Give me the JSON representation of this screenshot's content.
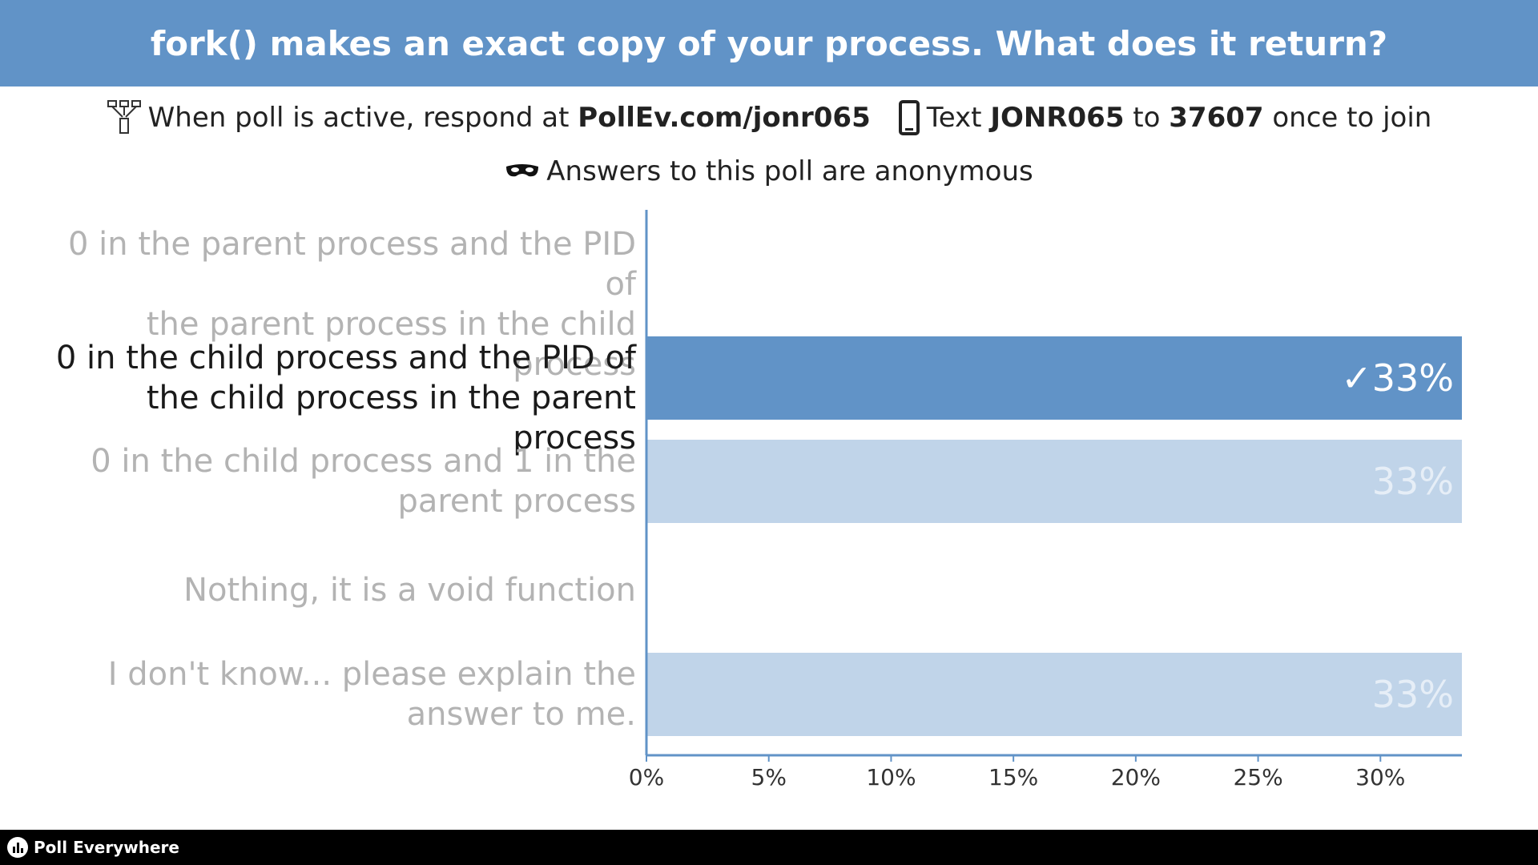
{
  "header": {
    "title": "fork() makes an exact copy of your process. What does it return?"
  },
  "instructions": {
    "web_prefix": "When poll is active, respond at",
    "web_url": "PollEv.com/jonr065",
    "text_prefix": "Text",
    "text_code": "JONR065",
    "text_mid": "to",
    "text_number": "37607",
    "text_suffix": "once to join",
    "anonymous": "Answers to this poll are anonymous"
  },
  "chart_data": {
    "type": "bar",
    "orientation": "horizontal",
    "categories": [
      "0 in the parent process and the PID of the parent process in the child process",
      "0 in the child process and the PID of the child process in the parent process",
      "0 in the child process and 1 in the parent process",
      "Nothing, it is a void function",
      "I don't know... please explain the answer to me."
    ],
    "label_lines": [
      [
        "0 in the parent process and the PID of",
        "the parent process in the child process"
      ],
      [
        "0 in the child process and the PID of",
        "the child process in the parent process"
      ],
      [
        "0 in the child process and 1 in the",
        "parent process"
      ],
      [
        "Nothing, it is a void function"
      ],
      [
        "I don't know... please explain the",
        "answer to me."
      ]
    ],
    "values": [
      0,
      33.33,
      33.33,
      0,
      33.33
    ],
    "value_labels": [
      "",
      "33%",
      "33%",
      "",
      "33%"
    ],
    "correct_index": 1,
    "correct_mark": "✓",
    "xlim": [
      0,
      33.33
    ],
    "xticks": [
      0,
      5,
      10,
      15,
      20,
      25,
      30
    ],
    "xtick_labels": [
      "0%",
      "5%",
      "10%",
      "15%",
      "20%",
      "25%",
      "30%"
    ],
    "colors": {
      "correct": "#6193c7",
      "other": "#c0d4e9",
      "axis": "#6193c7"
    }
  },
  "footer": {
    "brand": "Poll Everywhere"
  },
  "icons": [
    "network-icon",
    "phone-icon",
    "mask-icon",
    "poll-everywhere-logo-icon"
  ]
}
